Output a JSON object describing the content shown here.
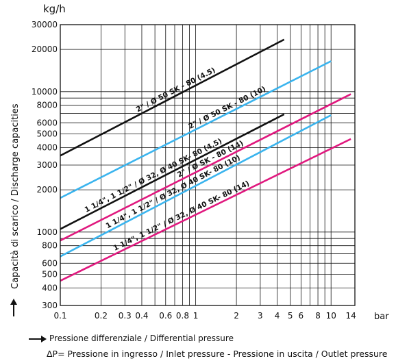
{
  "chart_data": {
    "type": "line",
    "y_unit": "kg/h",
    "x_unit": "bar",
    "ylabel": "Capacità di scarico / Discharge capacities",
    "xlabel": "Pressione differenziale / Differential pressure",
    "note": "ΔP= Pressione in ingresso / Inlet pressure - Pressione in uscita / Outlet pressure",
    "x_scale": "log",
    "y_scale": "log",
    "xlim": [
      0.1,
      15
    ],
    "ylim": [
      300,
      30000
    ],
    "grid": true,
    "x_ticks": [
      {
        "value": 0.1,
        "label": "0.1"
      },
      {
        "value": 0.2,
        "label": "0.2"
      },
      {
        "value": 0.3,
        "label": "0.3"
      },
      {
        "value": 0.4,
        "label": "0.4"
      },
      {
        "value": 0.6,
        "label": "0.6"
      },
      {
        "value": 0.8,
        "label": "0.8"
      },
      {
        "value": 1,
        "label": "1"
      },
      {
        "value": 2,
        "label": "2"
      },
      {
        "value": 3,
        "label": "3"
      },
      {
        "value": 4,
        "label": "4"
      },
      {
        "value": 5,
        "label": "5"
      },
      {
        "value": 6,
        "label": "6"
      },
      {
        "value": 8,
        "label": "8"
      },
      {
        "value": 10,
        "label": "10"
      },
      {
        "value": 14,
        "label": "14"
      }
    ],
    "y_ticks": [
      {
        "value": 30000,
        "label": "30000"
      },
      {
        "value": 20000,
        "label": "20000"
      },
      {
        "value": 10000,
        "label": "10000"
      },
      {
        "value": 8000,
        "label": "8000"
      },
      {
        "value": 6000,
        "label": "6000"
      },
      {
        "value": 5000,
        "label": "5000"
      },
      {
        "value": 4000,
        "label": "4000"
      },
      {
        "value": 3000,
        "label": "3000"
      },
      {
        "value": 2000,
        "label": "2000"
      },
      {
        "value": 1000,
        "label": "1000"
      },
      {
        "value": 800,
        "label": "800"
      },
      {
        "value": 600,
        "label": "600"
      },
      {
        "value": 500,
        "label": "500"
      },
      {
        "value": 400,
        "label": "400"
      },
      {
        "value": 300,
        "label": "300"
      }
    ],
    "series": [
      {
        "name": "2\" / Ø 50 SK - 80 (4.5)",
        "color": "#111111",
        "x": [
          0.1,
          4.5
        ],
        "y": [
          3500,
          23500
        ]
      },
      {
        "name": "2\" / Ø 50 SK - 80 (10)",
        "color": "#3ab4ee",
        "x": [
          0.1,
          10
        ],
        "y": [
          1750,
          16500
        ]
      },
      {
        "name": "1 1/4\", 1 1/2\" / Ø 32, Ø 40 SK- 80 (4.5)",
        "color": "#111111",
        "x": [
          0.1,
          4.5
        ],
        "y": [
          1050,
          6900
        ]
      },
      {
        "name": "2\" / Ø SK - 80 (14)",
        "color": "#e0187e",
        "x": [
          0.1,
          14
        ],
        "y": [
          870,
          9600
        ]
      },
      {
        "name": "1 1/4\", 1 1/2\" / Ø 32, Ø 40 SK- 80 (10)",
        "color": "#3ab4ee",
        "x": [
          0.1,
          10
        ],
        "y": [
          670,
          6800
        ]
      },
      {
        "name": "1 1/4\", 1 1/2\" / Ø 32, Ø 40 SK- 80 (14)",
        "color": "#e0187e",
        "x": [
          0.1,
          14
        ],
        "y": [
          450,
          4600
        ]
      }
    ]
  }
}
